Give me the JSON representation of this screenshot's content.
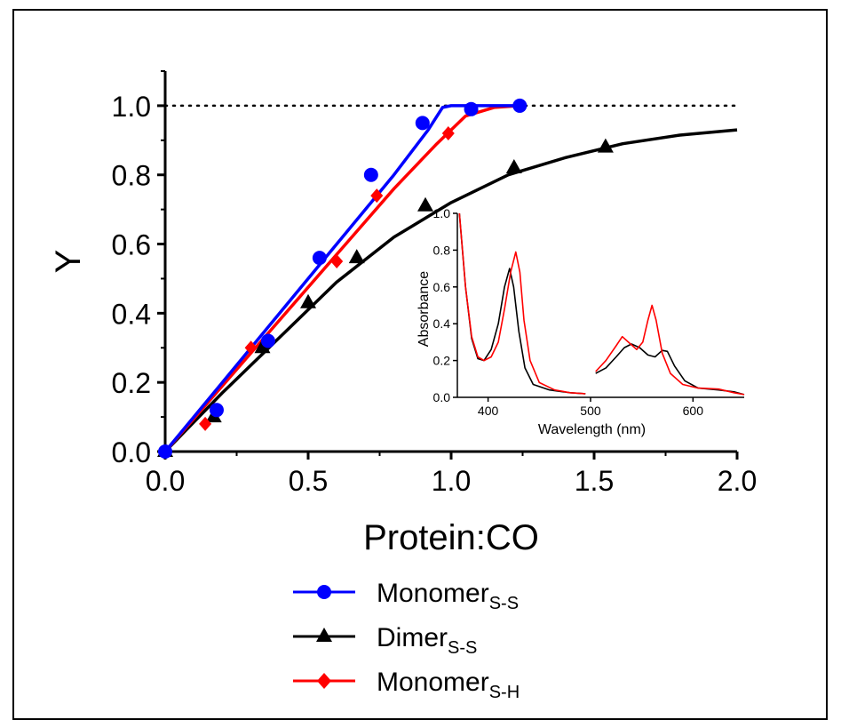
{
  "chart_data": [
    {
      "type": "line",
      "xlabel": "Protein:CO",
      "ylabel": "Y",
      "xlim": [
        0,
        2.0
      ],
      "ylim": [
        0,
        1.1
      ],
      "xticks": [
        "0.0",
        "0.5",
        "1.0",
        "1.5",
        "2.0"
      ],
      "yticks": [
        "0.0",
        "0.2",
        "0.4",
        "0.6",
        "0.8",
        "1.0"
      ],
      "reference_line": {
        "y": 1.0,
        "style": "dotted"
      },
      "legend": {
        "placement": "bottom-center"
      },
      "series": [
        {
          "name": "Monomer",
          "name_subscript": "S-S",
          "color": "#0000ff",
          "marker": "circle",
          "points": [
            [
              0.0,
              0.0
            ],
            [
              0.18,
              0.12
            ],
            [
              0.36,
              0.32
            ],
            [
              0.54,
              0.56
            ],
            [
              0.72,
              0.8
            ],
            [
              0.9,
              0.95
            ],
            [
              1.07,
              0.99
            ],
            [
              1.24,
              1.0
            ]
          ],
          "fit": [
            [
              0.0,
              0.0
            ],
            [
              0.2,
              0.2
            ],
            [
              0.4,
              0.4
            ],
            [
              0.6,
              0.6
            ],
            [
              0.8,
              0.8
            ],
            [
              0.92,
              0.93
            ],
            [
              0.97,
              0.995
            ],
            [
              1.0,
              1.0
            ],
            [
              1.24,
              1.0
            ]
          ]
        },
        {
          "name": "Dimer",
          "name_subscript": "S-S",
          "color": "#000000",
          "marker": "triangle",
          "points": [
            [
              0.0,
              0.0
            ],
            [
              0.17,
              0.1
            ],
            [
              0.34,
              0.3
            ],
            [
              0.5,
              0.43
            ],
            [
              0.67,
              0.56
            ],
            [
              0.91,
              0.71
            ],
            [
              1.22,
              0.82
            ],
            [
              1.54,
              0.88
            ]
          ],
          "fit": [
            [
              0.0,
              0.0
            ],
            [
              0.2,
              0.17
            ],
            [
              0.4,
              0.33
            ],
            [
              0.6,
              0.49
            ],
            [
              0.8,
              0.62
            ],
            [
              1.0,
              0.72
            ],
            [
              1.2,
              0.8
            ],
            [
              1.4,
              0.85
            ],
            [
              1.6,
              0.89
            ],
            [
              1.8,
              0.915
            ],
            [
              2.0,
              0.93
            ]
          ]
        },
        {
          "name": "Monomer",
          "name_subscript": "S-H",
          "color": "#ff0000",
          "marker": "diamond",
          "points": [
            [
              0.0,
              0.0
            ],
            [
              0.14,
              0.08
            ],
            [
              0.3,
              0.3
            ],
            [
              0.6,
              0.55
            ],
            [
              0.74,
              0.74
            ],
            [
              0.99,
              0.92
            ],
            [
              1.24,
              1.0
            ]
          ],
          "fit": [
            [
              0.0,
              0.0
            ],
            [
              0.2,
              0.19
            ],
            [
              0.4,
              0.38
            ],
            [
              0.6,
              0.57
            ],
            [
              0.8,
              0.76
            ],
            [
              0.95,
              0.89
            ],
            [
              1.05,
              0.97
            ],
            [
              1.15,
              0.995
            ],
            [
              1.24,
              1.0
            ]
          ]
        }
      ]
    },
    {
      "type": "line",
      "role": "inset",
      "xlabel": "Wavelength (nm)",
      "ylabel": "Absorbance",
      "xlim": [
        370,
        650
      ],
      "ylim": [
        0,
        1.0
      ],
      "xticks": [
        "400",
        "500",
        "600"
      ],
      "yticks": [
        "0.0",
        "0.2",
        "0.4",
        "0.6",
        "0.8",
        "1.0"
      ],
      "series": [
        {
          "color": "#000000",
          "segments": [
            [
              [
                372,
                1.0
              ],
              [
                378,
                0.6
              ],
              [
                384,
                0.32
              ],
              [
                390,
                0.21
              ],
              [
                396,
                0.2
              ],
              [
                403,
                0.26
              ],
              [
                410,
                0.4
              ],
              [
                416,
                0.6
              ],
              [
                421,
                0.7
              ],
              [
                425,
                0.6
              ],
              [
                430,
                0.36
              ],
              [
                436,
                0.16
              ],
              [
                444,
                0.07
              ],
              [
                460,
                0.04
              ],
              [
                480,
                0.025
              ],
              [
                495,
                0.02
              ]
            ],
            [
              [
                505,
                0.13
              ],
              [
                515,
                0.16
              ],
              [
                525,
                0.22
              ],
              [
                533,
                0.27
              ],
              [
                540,
                0.29
              ],
              [
                548,
                0.27
              ],
              [
                556,
                0.23
              ],
              [
                563,
                0.22
              ],
              [
                570,
                0.255
              ],
              [
                575,
                0.25
              ],
              [
                582,
                0.17
              ],
              [
                592,
                0.09
              ],
              [
                605,
                0.05
              ],
              [
                625,
                0.04
              ],
              [
                640,
                0.03
              ],
              [
                650,
                0.015
              ]
            ]
          ]
        },
        {
          "color": "#ff0000",
          "segments": [
            [
              [
                372,
                1.0
              ],
              [
                378,
                0.6
              ],
              [
                384,
                0.33
              ],
              [
                390,
                0.22
              ],
              [
                396,
                0.2
              ],
              [
                403,
                0.22
              ],
              [
                410,
                0.3
              ],
              [
                416,
                0.48
              ],
              [
                422,
                0.68
              ],
              [
                427,
                0.79
              ],
              [
                431,
                0.68
              ],
              [
                435,
                0.42
              ],
              [
                441,
                0.2
              ],
              [
                450,
                0.08
              ],
              [
                465,
                0.04
              ],
              [
                480,
                0.025
              ],
              [
                495,
                0.02
              ]
            ],
            [
              [
                505,
                0.14
              ],
              [
                515,
                0.2
              ],
              [
                525,
                0.28
              ],
              [
                531,
                0.33
              ],
              [
                537,
                0.3
              ],
              [
                545,
                0.26
              ],
              [
                551,
                0.3
              ],
              [
                556,
                0.42
              ],
              [
                560,
                0.5
              ],
              [
                564,
                0.42
              ],
              [
                570,
                0.24
              ],
              [
                578,
                0.13
              ],
              [
                590,
                0.07
              ],
              [
                605,
                0.05
              ],
              [
                625,
                0.045
              ],
              [
                640,
                0.025
              ],
              [
                650,
                0.015
              ]
            ]
          ]
        }
      ]
    }
  ]
}
